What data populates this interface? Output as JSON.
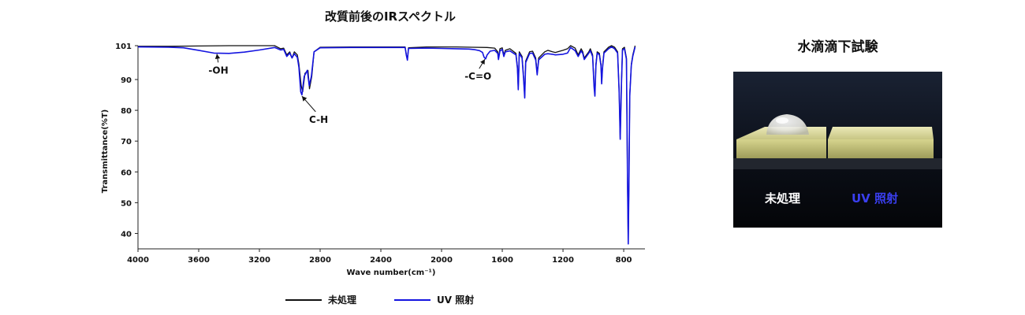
{
  "chart_data": {
    "type": "line",
    "title": "改質前後のIRスペクトル",
    "xlabel": "Wave number(cm⁻¹)",
    "ylabel": "Transmittance(%T)",
    "xlim": [
      4000,
      660
    ],
    "ylim": [
      35,
      101
    ],
    "x_ticks": [
      "4000",
      "3600",
      "3200",
      "2800",
      "2400",
      "2000",
      "1600",
      "1200",
      "800"
    ],
    "y_ticks": [
      "101",
      "90",
      "80",
      "70",
      "60",
      "50",
      "40"
    ],
    "legend_position": "bottom",
    "series": [
      {
        "name": "未処理",
        "color": "#111111",
        "points": [
          [
            4000,
            100.8
          ],
          [
            3800,
            100.8
          ],
          [
            3600,
            100.9
          ],
          [
            3400,
            101
          ],
          [
            3200,
            101
          ],
          [
            3100,
            101
          ],
          [
            3060,
            100
          ],
          [
            3040,
            100.2
          ],
          [
            3020,
            98
          ],
          [
            3000,
            99
          ],
          [
            2985,
            97
          ],
          [
            2970,
            99
          ],
          [
            2950,
            98
          ],
          [
            2940,
            95
          ],
          [
            2925,
            88
          ],
          [
            2915,
            86
          ],
          [
            2900,
            92
          ],
          [
            2880,
            93
          ],
          [
            2870,
            87
          ],
          [
            2855,
            91
          ],
          [
            2840,
            99
          ],
          [
            2800,
            100.5
          ],
          [
            2600,
            100.6
          ],
          [
            2400,
            100.6
          ],
          [
            2240,
            100.6
          ],
          [
            2232,
            98
          ],
          [
            2225,
            96.5
          ],
          [
            2218,
            100.3
          ],
          [
            2100,
            100.6
          ],
          [
            1900,
            100.6
          ],
          [
            1800,
            100.5
          ],
          [
            1700,
            100.4
          ],
          [
            1650,
            100.2
          ],
          [
            1630,
            99
          ],
          [
            1625,
            97
          ],
          [
            1615,
            100
          ],
          [
            1600,
            100.3
          ],
          [
            1590,
            98
          ],
          [
            1580,
            99.5
          ],
          [
            1550,
            100
          ],
          [
            1510,
            98.5
          ],
          [
            1500,
            94
          ],
          [
            1495,
            87
          ],
          [
            1488,
            99
          ],
          [
            1470,
            97.5
          ],
          [
            1460,
            91
          ],
          [
            1452,
            84.5
          ],
          [
            1446,
            96
          ],
          [
            1420,
            99
          ],
          [
            1400,
            99.2
          ],
          [
            1380,
            97
          ],
          [
            1370,
            92
          ],
          [
            1360,
            97
          ],
          [
            1320,
            99
          ],
          [
            1300,
            99.5
          ],
          [
            1270,
            99
          ],
          [
            1250,
            98.8
          ],
          [
            1200,
            99.5
          ],
          [
            1170,
            100
          ],
          [
            1150,
            101
          ],
          [
            1120,
            100.2
          ],
          [
            1100,
            98
          ],
          [
            1080,
            100
          ],
          [
            1070,
            99
          ],
          [
            1060,
            97
          ],
          [
            1030,
            99
          ],
          [
            1020,
            100
          ],
          [
            1005,
            98
          ],
          [
            995,
            88
          ],
          [
            990,
            85
          ],
          [
            983,
            95
          ],
          [
            975,
            99
          ],
          [
            960,
            98.5
          ],
          [
            950,
            95
          ],
          [
            945,
            89
          ],
          [
            940,
            94
          ],
          [
            930,
            99
          ],
          [
            900,
            100.5
          ],
          [
            880,
            101
          ],
          [
            860,
            100.5
          ],
          [
            840,
            99
          ],
          [
            830,
            86
          ],
          [
            823,
            71
          ],
          [
            815,
            89
          ],
          [
            808,
            100
          ],
          [
            795,
            100.5
          ],
          [
            782,
            97
          ],
          [
            775,
            57
          ],
          [
            770,
            37
          ],
          [
            766,
            55
          ],
          [
            760,
            85
          ],
          [
            750,
            95
          ],
          [
            740,
            98
          ],
          [
            725,
            101
          ]
        ]
      },
      {
        "name": "UV 照射",
        "color": "#1414e0",
        "points": [
          [
            4000,
            100.6
          ],
          [
            3800,
            100.5
          ],
          [
            3700,
            100.3
          ],
          [
            3600,
            99.5
          ],
          [
            3500,
            98.6
          ],
          [
            3400,
            98.5
          ],
          [
            3300,
            98.9
          ],
          [
            3200,
            99.6
          ],
          [
            3100,
            100.4
          ],
          [
            3060,
            99.6
          ],
          [
            3040,
            99.8
          ],
          [
            3020,
            97.5
          ],
          [
            3000,
            98.6
          ],
          [
            2985,
            97
          ],
          [
            2970,
            98.4
          ],
          [
            2950,
            97.2
          ],
          [
            2940,
            94
          ],
          [
            2928,
            86
          ],
          [
            2920,
            85
          ],
          [
            2905,
            91
          ],
          [
            2885,
            93
          ],
          [
            2872,
            88
          ],
          [
            2858,
            91
          ],
          [
            2840,
            99
          ],
          [
            2800,
            100.3
          ],
          [
            2600,
            100.4
          ],
          [
            2400,
            100.4
          ],
          [
            2240,
            100.4
          ],
          [
            2232,
            97.8
          ],
          [
            2225,
            96.3
          ],
          [
            2218,
            100.1
          ],
          [
            2100,
            100.2
          ],
          [
            2000,
            100.1
          ],
          [
            1900,
            100
          ],
          [
            1820,
            99.9
          ],
          [
            1780,
            99.7
          ],
          [
            1750,
            99.4
          ],
          [
            1730,
            98.8
          ],
          [
            1720,
            97.3
          ],
          [
            1710,
            96.7
          ],
          [
            1700,
            98
          ],
          [
            1680,
            99.2
          ],
          [
            1650,
            99.5
          ],
          [
            1630,
            98.5
          ],
          [
            1625,
            96.5
          ],
          [
            1615,
            99.3
          ],
          [
            1600,
            99.8
          ],
          [
            1590,
            97.5
          ],
          [
            1580,
            99
          ],
          [
            1550,
            99.3
          ],
          [
            1510,
            98
          ],
          [
            1500,
            93.5
          ],
          [
            1495,
            86.7
          ],
          [
            1488,
            98.5
          ],
          [
            1470,
            97
          ],
          [
            1460,
            90.5
          ],
          [
            1452,
            84
          ],
          [
            1446,
            95.5
          ],
          [
            1420,
            98.5
          ],
          [
            1400,
            98.6
          ],
          [
            1380,
            96.4
          ],
          [
            1370,
            91.5
          ],
          [
            1360,
            96.4
          ],
          [
            1320,
            98.2
          ],
          [
            1300,
            98.4
          ],
          [
            1270,
            98.2
          ],
          [
            1250,
            98
          ],
          [
            1200,
            98.2
          ],
          [
            1170,
            98.6
          ],
          [
            1150,
            100.4
          ],
          [
            1120,
            99.4
          ],
          [
            1100,
            97.5
          ],
          [
            1080,
            99.3
          ],
          [
            1070,
            98.5
          ],
          [
            1060,
            96.5
          ],
          [
            1030,
            98.6
          ],
          [
            1020,
            99.4
          ],
          [
            1005,
            97.5
          ],
          [
            995,
            87.5
          ],
          [
            990,
            84.6
          ],
          [
            983,
            94.5
          ],
          [
            975,
            98.6
          ],
          [
            960,
            98
          ],
          [
            950,
            94.5
          ],
          [
            945,
            88.6
          ],
          [
            940,
            93.5
          ],
          [
            930,
            98.6
          ],
          [
            900,
            100
          ],
          [
            880,
            100.6
          ],
          [
            860,
            100
          ],
          [
            840,
            98.6
          ],
          [
            830,
            85.6
          ],
          [
            823,
            70.6
          ],
          [
            815,
            88.6
          ],
          [
            808,
            99.6
          ],
          [
            795,
            100
          ],
          [
            782,
            96.6
          ],
          [
            775,
            56.6
          ],
          [
            770,
            36.6
          ],
          [
            766,
            54.6
          ],
          [
            760,
            84.6
          ],
          [
            750,
            94.6
          ],
          [
            740,
            97.6
          ],
          [
            725,
            100.6
          ]
        ]
      }
    ],
    "annotations": [
      {
        "text": "-OH",
        "tip_x": 3480,
        "tip_y": 98.3,
        "label_x": 3470,
        "label_y": 93.5
      },
      {
        "text": "C-H",
        "tip_x": 2920,
        "tip_y": 84.6,
        "label_x": 2810,
        "label_y": 77.5
      },
      {
        "text": "-C=O",
        "tip_x": 1715,
        "tip_y": 96.6,
        "label_x": 1760,
        "label_y": 91.5
      }
    ]
  },
  "photo_panel": {
    "title": "水滴滴下試験",
    "label_untreated": "未処理",
    "label_uv": "UV 照射",
    "label_uv_color": "#3a3ff0"
  }
}
